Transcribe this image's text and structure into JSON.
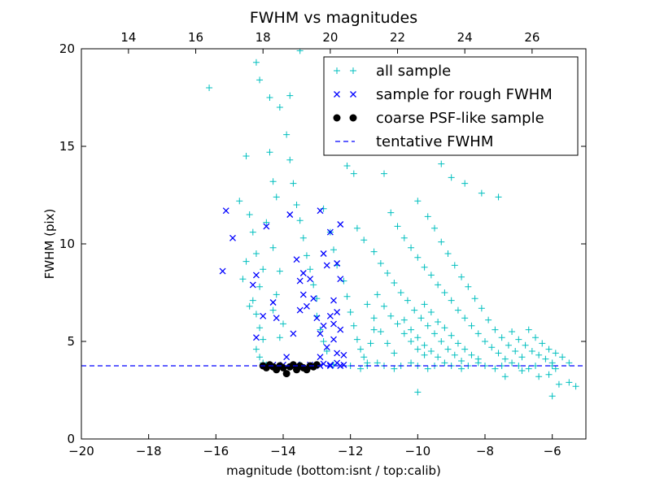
{
  "chart_data": {
    "type": "scatter",
    "title": "FWHM vs magnitudes",
    "xlabel": "magnitude (bottom:isnt / top:calib)",
    "ylabel": "FWHM (pix)",
    "xlim": [
      -20,
      -5
    ],
    "ylim": [
      0,
      20
    ],
    "x_ticks": [
      -20,
      -18,
      -16,
      -14,
      -12,
      -10,
      -8,
      -6
    ],
    "x_tick_labels": [
      "−20",
      "−18",
      "−16",
      "−14",
      "−12",
      "−10",
      "−8",
      "−6"
    ],
    "y_ticks": [
      0,
      5,
      10,
      15,
      20
    ],
    "y_tick_labels": [
      "0",
      "5",
      "10",
      "15",
      "20"
    ],
    "top_axis": {
      "xlim": [
        12.6,
        27.6
      ],
      "ticks": [
        14,
        16,
        18,
        20,
        22,
        24,
        26
      ],
      "tick_labels": [
        "14",
        "16",
        "18",
        "20",
        "22",
        "24",
        "26"
      ]
    },
    "grid": false,
    "legend_position": "top-right",
    "tentative_fwhm": 3.75,
    "series": [
      {
        "name": "all sample",
        "marker": "plus",
        "color": "#00bfbf",
        "points": [
          [
            -16.2,
            18.0
          ],
          [
            -15.1,
            14.5
          ],
          [
            -14.8,
            19.3
          ],
          [
            -14.7,
            18.4
          ],
          [
            -14.4,
            17.5
          ],
          [
            -14.1,
            17.0
          ],
          [
            -13.8,
            17.6
          ],
          [
            -13.5,
            19.9
          ],
          [
            -12.1,
            14.0
          ],
          [
            -11.9,
            13.6
          ],
          [
            -11.0,
            13.6
          ],
          [
            -10.5,
            14.8
          ],
          [
            -10.2,
            15.1
          ],
          [
            -9.6,
            14.8
          ],
          [
            -9.3,
            14.1
          ],
          [
            -9.0,
            13.4
          ],
          [
            -8.6,
            13.1
          ],
          [
            -8.1,
            12.6
          ],
          [
            -7.6,
            12.4
          ],
          [
            -15.3,
            12.2
          ],
          [
            -15.0,
            11.5
          ],
          [
            -14.9,
            10.6
          ],
          [
            -14.8,
            9.5
          ],
          [
            -14.6,
            8.7
          ],
          [
            -14.7,
            7.8
          ],
          [
            -14.9,
            7.1
          ],
          [
            -14.8,
            6.4
          ],
          [
            -14.7,
            5.7
          ],
          [
            -14.6,
            5.1
          ],
          [
            -14.8,
            4.6
          ],
          [
            -14.7,
            4.2
          ],
          [
            -14.6,
            3.9
          ],
          [
            -15.0,
            6.8
          ],
          [
            -15.2,
            8.2
          ],
          [
            -15.1,
            9.1
          ],
          [
            -14.4,
            14.7
          ],
          [
            -14.3,
            13.2
          ],
          [
            -14.2,
            12.4
          ],
          [
            -14.5,
            11.1
          ],
          [
            -14.3,
            9.8
          ],
          [
            -14.1,
            8.6
          ],
          [
            -14.2,
            7.4
          ],
          [
            -14.3,
            6.6
          ],
          [
            -14.0,
            5.9
          ],
          [
            -14.1,
            5.2
          ],
          [
            -13.9,
            15.6
          ],
          [
            -13.8,
            14.3
          ],
          [
            -13.7,
            13.1
          ],
          [
            -13.6,
            12.0
          ],
          [
            -13.5,
            11.2
          ],
          [
            -13.4,
            10.3
          ],
          [
            -13.3,
            9.4
          ],
          [
            -13.2,
            8.7
          ],
          [
            -13.1,
            7.9
          ],
          [
            -13.0,
            7.2
          ],
          [
            -13.0,
            6.3
          ],
          [
            -12.9,
            5.6
          ],
          [
            -12.8,
            5.0
          ],
          [
            -12.7,
            4.5
          ],
          [
            -12.8,
            11.8
          ],
          [
            -12.6,
            10.6
          ],
          [
            -12.5,
            9.7
          ],
          [
            -12.4,
            8.9
          ],
          [
            -12.2,
            8.1
          ],
          [
            -12.1,
            7.3
          ],
          [
            -12.0,
            6.5
          ],
          [
            -11.9,
            5.8
          ],
          [
            -11.8,
            5.1
          ],
          [
            -11.7,
            4.6
          ],
          [
            -11.6,
            4.2
          ],
          [
            -11.5,
            3.9
          ],
          [
            -11.4,
            4.9
          ],
          [
            -11.3,
            5.6
          ],
          [
            -11.8,
            10.8
          ],
          [
            -11.6,
            10.2
          ],
          [
            -11.3,
            9.6
          ],
          [
            -11.1,
            9.0
          ],
          [
            -10.9,
            8.5
          ],
          [
            -10.7,
            8.0
          ],
          [
            -10.5,
            7.5
          ],
          [
            -10.3,
            7.1
          ],
          [
            -10.1,
            6.6
          ],
          [
            -9.9,
            6.2
          ],
          [
            -9.7,
            5.8
          ],
          [
            -9.5,
            5.4
          ],
          [
            -9.3,
            5.0
          ],
          [
            -9.1,
            4.6
          ],
          [
            -8.9,
            4.3
          ],
          [
            -8.7,
            4.0
          ],
          [
            -10.8,
            11.6
          ],
          [
            -10.6,
            10.9
          ],
          [
            -10.4,
            10.3
          ],
          [
            -10.2,
            9.8
          ],
          [
            -10.0,
            9.3
          ],
          [
            -9.8,
            8.8
          ],
          [
            -9.6,
            8.4
          ],
          [
            -9.4,
            7.9
          ],
          [
            -9.2,
            7.5
          ],
          [
            -9.0,
            7.1
          ],
          [
            -8.8,
            6.6
          ],
          [
            -8.6,
            6.2
          ],
          [
            -8.4,
            5.8
          ],
          [
            -8.2,
            5.4
          ],
          [
            -8.0,
            5.0
          ],
          [
            -7.8,
            4.7
          ],
          [
            -7.6,
            4.4
          ],
          [
            -7.4,
            4.1
          ],
          [
            -10.0,
            12.2
          ],
          [
            -9.7,
            11.4
          ],
          [
            -9.5,
            10.8
          ],
          [
            -9.3,
            10.1
          ],
          [
            -9.1,
            9.5
          ],
          [
            -8.9,
            8.9
          ],
          [
            -8.7,
            8.3
          ],
          [
            -8.5,
            7.8
          ],
          [
            -8.3,
            7.2
          ],
          [
            -8.1,
            6.7
          ],
          [
            -7.9,
            6.1
          ],
          [
            -7.7,
            5.6
          ],
          [
            -7.5,
            5.2
          ],
          [
            -7.3,
            4.8
          ],
          [
            -7.1,
            4.5
          ],
          [
            -6.9,
            4.2
          ],
          [
            -9.8,
            6.9
          ],
          [
            -9.6,
            6.5
          ],
          [
            -9.4,
            6.0
          ],
          [
            -9.2,
            5.7
          ],
          [
            -9.0,
            5.3
          ],
          [
            -8.8,
            4.9
          ],
          [
            -8.6,
            4.6
          ],
          [
            -8.4,
            4.3
          ],
          [
            -8.2,
            4.1
          ],
          [
            -10.4,
            6.1
          ],
          [
            -10.2,
            5.6
          ],
          [
            -10.0,
            5.2
          ],
          [
            -9.8,
            4.8
          ],
          [
            -9.6,
            4.5
          ],
          [
            -9.4,
            4.2
          ],
          [
            -11.2,
            7.4
          ],
          [
            -11.0,
            6.8
          ],
          [
            -10.8,
            6.3
          ],
          [
            -10.6,
            5.9
          ],
          [
            -10.4,
            5.4
          ],
          [
            -10.2,
            5.0
          ],
          [
            -10.0,
            4.6
          ],
          [
            -9.8,
            4.3
          ],
          [
            -11.5,
            6.9
          ],
          [
            -11.3,
            6.2
          ],
          [
            -11.1,
            5.5
          ],
          [
            -10.9,
            4.9
          ],
          [
            -10.7,
            4.4
          ],
          [
            -7.2,
            5.5
          ],
          [
            -7.0,
            5.1
          ],
          [
            -6.8,
            4.8
          ],
          [
            -6.6,
            4.5
          ],
          [
            -6.4,
            4.3
          ],
          [
            -6.2,
            4.1
          ],
          [
            -6.0,
            3.9
          ],
          [
            -6.7,
            5.6
          ],
          [
            -6.5,
            5.2
          ],
          [
            -6.3,
            4.9
          ],
          [
            -6.1,
            4.6
          ],
          [
            -5.9,
            4.4
          ],
          [
            -5.7,
            4.2
          ],
          [
            -5.5,
            3.9
          ],
          [
            -6.9,
            3.5
          ],
          [
            -6.4,
            3.2
          ],
          [
            -6.1,
            3.3
          ],
          [
            -5.8,
            2.8
          ],
          [
            -5.5,
            2.9
          ],
          [
            -5.3,
            2.7
          ],
          [
            -6.0,
            2.2
          ],
          [
            -7.4,
            3.2
          ],
          [
            -10.0,
            2.4
          ],
          [
            -5.9,
            3.6
          ],
          [
            -14.5,
            3.8
          ],
          [
            -13.5,
            3.8
          ],
          [
            -12.5,
            3.8
          ],
          [
            -12.0,
            3.75
          ],
          [
            -11.5,
            3.75
          ],
          [
            -11.0,
            3.75
          ],
          [
            -10.5,
            3.75
          ],
          [
            -10.0,
            3.75
          ],
          [
            -9.5,
            3.75
          ],
          [
            -9.0,
            3.75
          ],
          [
            -8.5,
            3.75
          ],
          [
            -8.0,
            3.75
          ],
          [
            -7.5,
            3.75
          ],
          [
            -7.0,
            3.75
          ],
          [
            -6.5,
            3.75
          ],
          [
            -6.0,
            3.75
          ],
          [
            -11.7,
            3.6
          ],
          [
            -11.2,
            3.9
          ],
          [
            -10.7,
            3.6
          ],
          [
            -10.2,
            3.9
          ],
          [
            -9.7,
            3.6
          ],
          [
            -9.2,
            3.9
          ],
          [
            -8.7,
            3.6
          ],
          [
            -8.2,
            3.9
          ],
          [
            -7.7,
            3.6
          ],
          [
            -7.2,
            3.9
          ],
          [
            -6.7,
            3.6
          ]
        ]
      },
      {
        "name": "sample for rough FWHM",
        "marker": "x",
        "color": "#0000ff",
        "points": [
          [
            -15.7,
            11.7
          ],
          [
            -15.5,
            10.3
          ],
          [
            -15.8,
            8.6
          ],
          [
            -14.5,
            10.9
          ],
          [
            -14.8,
            8.4
          ],
          [
            -14.9,
            7.9
          ],
          [
            -14.8,
            5.2
          ],
          [
            -14.6,
            6.3
          ],
          [
            -14.3,
            7.0
          ],
          [
            -14.2,
            6.2
          ],
          [
            -13.8,
            11.5
          ],
          [
            -13.6,
            9.2
          ],
          [
            -13.5,
            8.1
          ],
          [
            -13.4,
            7.4
          ],
          [
            -13.5,
            6.6
          ],
          [
            -13.7,
            5.4
          ],
          [
            -13.9,
            4.2
          ],
          [
            -13.4,
            8.5
          ],
          [
            -13.2,
            8.2
          ],
          [
            -13.1,
            7.2
          ],
          [
            -12.9,
            11.7
          ],
          [
            -12.8,
            9.5
          ],
          [
            -12.7,
            8.9
          ],
          [
            -12.6,
            10.6
          ],
          [
            -12.6,
            6.3
          ],
          [
            -12.3,
            11.0
          ],
          [
            -12.4,
            9.0
          ],
          [
            -12.3,
            8.2
          ],
          [
            -12.5,
            7.1
          ],
          [
            -12.4,
            6.5
          ],
          [
            -12.5,
            5.9
          ],
          [
            -13.0,
            6.2
          ],
          [
            -12.9,
            5.4
          ],
          [
            -12.8,
            5.8
          ],
          [
            -12.7,
            4.7
          ],
          [
            -12.5,
            5.1
          ],
          [
            -12.3,
            5.6
          ],
          [
            -12.4,
            4.4
          ],
          [
            -12.2,
            4.3
          ],
          [
            -12.4,
            3.9
          ],
          [
            -12.6,
            3.8
          ],
          [
            -12.8,
            3.85
          ],
          [
            -12.9,
            4.2
          ],
          [
            -13.3,
            6.8
          ],
          [
            -14.3,
            3.8
          ],
          [
            -14.0,
            3.8
          ],
          [
            -13.6,
            3.8
          ],
          [
            -13.2,
            3.8
          ],
          [
            -12.9,
            3.75
          ],
          [
            -12.6,
            3.75
          ],
          [
            -12.3,
            3.75
          ],
          [
            -12.2,
            3.8
          ]
        ]
      },
      {
        "name": "coarse PSF-like sample",
        "marker": "dot",
        "color": "#000000",
        "points": [
          [
            -14.6,
            3.75
          ],
          [
            -14.5,
            3.65
          ],
          [
            -14.4,
            3.8
          ],
          [
            -14.3,
            3.7
          ],
          [
            -14.2,
            3.55
          ],
          [
            -14.1,
            3.75
          ],
          [
            -14.0,
            3.65
          ],
          [
            -13.9,
            3.35
          ],
          [
            -13.8,
            3.7
          ],
          [
            -13.7,
            3.8
          ],
          [
            -13.6,
            3.55
          ],
          [
            -13.5,
            3.75
          ],
          [
            -13.4,
            3.65
          ],
          [
            -13.3,
            3.55
          ],
          [
            -13.2,
            3.75
          ],
          [
            -13.1,
            3.7
          ],
          [
            -13.0,
            3.8
          ]
        ]
      },
      {
        "name": "tentative FWHM",
        "marker": "dashed-line",
        "color": "#0000ff",
        "y": 3.75
      }
    ]
  }
}
